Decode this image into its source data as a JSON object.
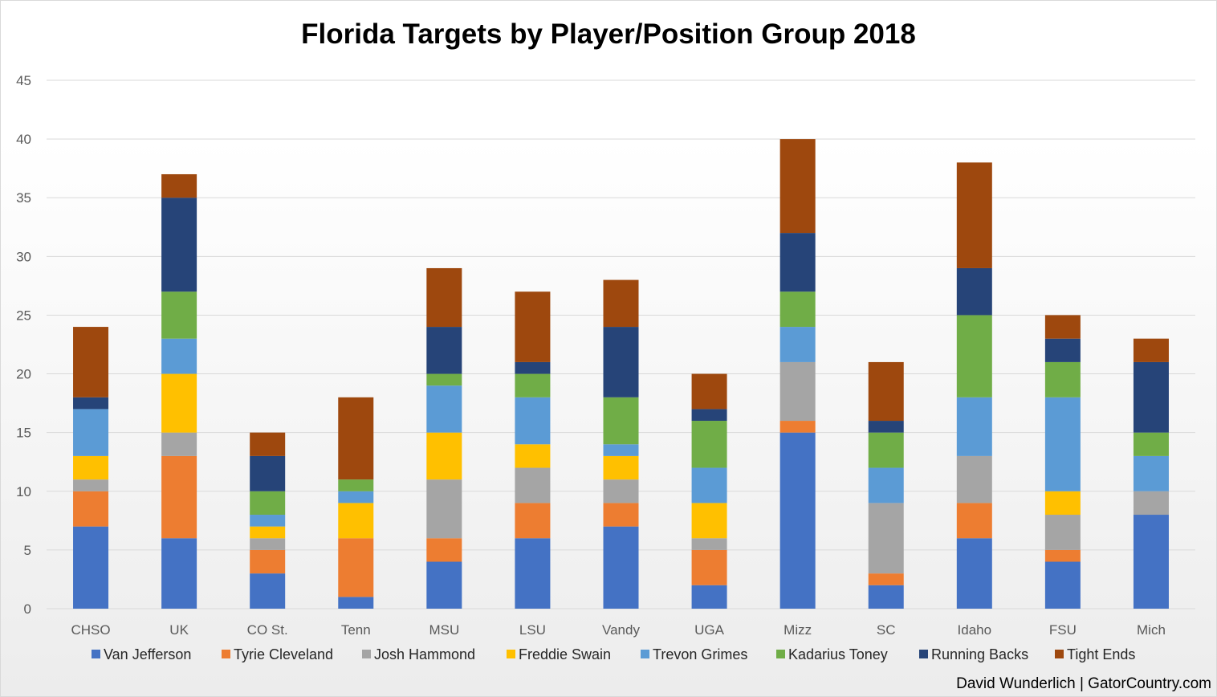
{
  "chart_data": {
    "type": "bar",
    "stacked": true,
    "title": "Florida Targets by Player/Position Group 2018",
    "xlabel": "",
    "ylabel": "",
    "ylim": [
      0,
      45
    ],
    "yticks": [
      0,
      5,
      10,
      15,
      20,
      25,
      30,
      35,
      40,
      45
    ],
    "grid": true,
    "legend_position": "bottom",
    "categories": [
      "CHSO",
      "UK",
      "CO St.",
      "Tenn",
      "MSU",
      "LSU",
      "Vandy",
      "UGA",
      "Mizz",
      "SC",
      "Idaho",
      "FSU",
      "Mich"
    ],
    "series": [
      {
        "name": "Van Jefferson",
        "color": "#4472c4",
        "values": [
          7,
          6,
          3,
          1,
          4,
          6,
          7,
          2,
          15,
          2,
          6,
          4,
          8
        ]
      },
      {
        "name": "Tyrie Cleveland",
        "color": "#ed7d31",
        "values": [
          3,
          7,
          2,
          5,
          2,
          3,
          2,
          3,
          1,
          1,
          3,
          1,
          0
        ]
      },
      {
        "name": "Josh Hammond",
        "color": "#a5a5a5",
        "values": [
          1,
          2,
          1,
          0,
          5,
          3,
          2,
          1,
          5,
          6,
          4,
          3,
          2
        ]
      },
      {
        "name": "Freddie Swain",
        "color": "#ffc000",
        "values": [
          2,
          5,
          1,
          3,
          4,
          2,
          2,
          3,
          0,
          0,
          0,
          2,
          0
        ]
      },
      {
        "name": "Trevon Grimes",
        "color": "#5b9bd5",
        "values": [
          4,
          3,
          1,
          1,
          4,
          4,
          1,
          3,
          3,
          3,
          5,
          8,
          3
        ]
      },
      {
        "name": "Kadarius Toney",
        "color": "#70ad47",
        "values": [
          0,
          4,
          2,
          1,
          1,
          2,
          4,
          4,
          3,
          3,
          7,
          3,
          2
        ]
      },
      {
        "name": "Running Backs",
        "color": "#264478",
        "values": [
          1,
          8,
          3,
          0,
          4,
          1,
          6,
          1,
          5,
          1,
          4,
          2,
          6
        ]
      },
      {
        "name": "Tight Ends",
        "color": "#9e480e",
        "values": [
          6,
          2,
          2,
          7,
          5,
          6,
          4,
          3,
          8,
          5,
          9,
          2,
          2
        ]
      }
    ]
  },
  "credit": "David Wunderlich | GatorCountry.com",
  "colors": {
    "gridline": "#d9d9d9",
    "axis_text": "#595959"
  }
}
